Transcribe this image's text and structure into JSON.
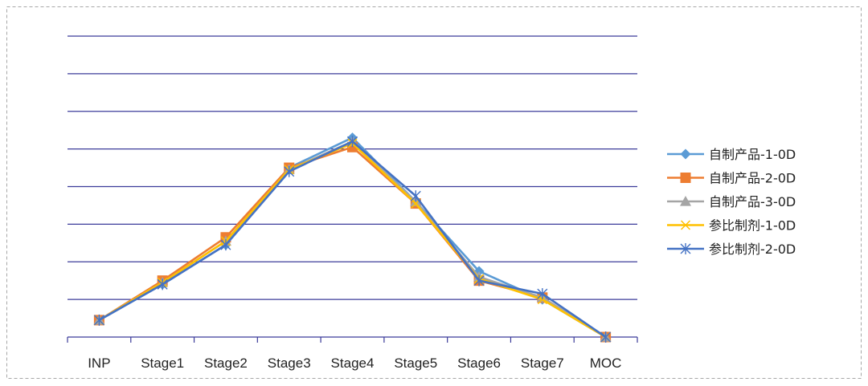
{
  "chart_data": {
    "type": "line",
    "categories": [
      "INP",
      "Stage1",
      "Stage2",
      "Stage3",
      "Stage4",
      "Stage5",
      "Stage6",
      "Stage7",
      "MOC"
    ],
    "ylim": [
      0,
      8
    ],
    "grid": true,
    "y_tick_labels_shown": false,
    "legend_position": "right",
    "series": [
      {
        "name": "自制产品-1-0D",
        "color": "#5b9bd5",
        "marker": "diamond",
        "values": [
          0.45,
          1.4,
          2.45,
          4.5,
          5.3,
          3.6,
          1.75,
          1.0,
          0
        ]
      },
      {
        "name": "自制产品-2-0D",
        "color": "#ed7d31",
        "marker": "square",
        "values": [
          0.45,
          1.5,
          2.65,
          4.5,
          5.05,
          3.55,
          1.5,
          1.05,
          0
        ]
      },
      {
        "name": "自制产品-3-0D",
        "color": "#a5a5a5",
        "marker": "triangle",
        "values": [
          0.45,
          1.45,
          2.55,
          4.45,
          5.2,
          3.6,
          1.6,
          1.05,
          0
        ]
      },
      {
        "name": "参比制剂-1-0D",
        "color": "#ffc000",
        "marker": "x",
        "values": [
          0.45,
          1.45,
          2.55,
          4.45,
          5.15,
          3.55,
          1.55,
          1.0,
          0
        ]
      },
      {
        "name": "参比制剂-2-0D",
        "color": "#4472c4",
        "marker": "star",
        "values": [
          0.45,
          1.4,
          2.45,
          4.4,
          5.2,
          3.75,
          1.5,
          1.15,
          0
        ]
      }
    ]
  }
}
